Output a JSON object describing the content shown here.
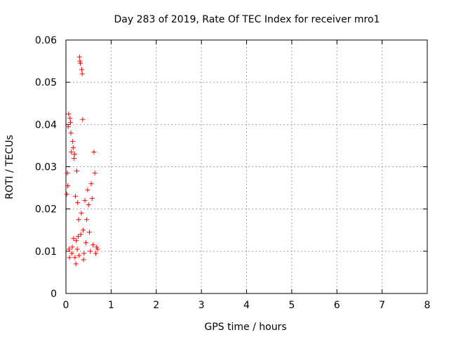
{
  "chart_data": {
    "type": "scatter",
    "title": "Day 283 of 2019, Rate Of TEC Index for receiver mro1",
    "xlabel": "GPS time / hours",
    "ylabel": "ROTI / TECUs",
    "xlim": [
      0,
      8
    ],
    "ylim": [
      0,
      0.06
    ],
    "xticks": [
      "0",
      "1",
      "2",
      "3",
      "4",
      "5",
      "6",
      "7",
      "8"
    ],
    "yticks": [
      "0",
      "0.01",
      "0.02",
      "0.03",
      "0.04",
      "0.05",
      "0.06"
    ],
    "grid": true,
    "marker": "+",
    "marker_color": "#ff0000",
    "series": [
      {
        "name": "ROTI",
        "points": [
          [
            0.02,
            0.0235
          ],
          [
            0.03,
            0.0285
          ],
          [
            0.04,
            0.0255
          ],
          [
            0.05,
            0.0395
          ],
          [
            0.06,
            0.0425
          ],
          [
            0.07,
            0.0105
          ],
          [
            0.08,
            0.0085
          ],
          [
            0.09,
            0.0415
          ],
          [
            0.1,
            0.0405
          ],
          [
            0.11,
            0.038
          ],
          [
            0.12,
            0.0335
          ],
          [
            0.13,
            0.0095
          ],
          [
            0.14,
            0.011
          ],
          [
            0.15,
            0.036
          ],
          [
            0.16,
            0.0345
          ],
          [
            0.17,
            0.013
          ],
          [
            0.18,
            0.032
          ],
          [
            0.19,
            0.033
          ],
          [
            0.2,
            0.0085
          ],
          [
            0.21,
            0.023
          ],
          [
            0.22,
            0.007
          ],
          [
            0.23,
            0.0125
          ],
          [
            0.24,
            0.029
          ],
          [
            0.25,
            0.0105
          ],
          [
            0.26,
            0.0215
          ],
          [
            0.27,
            0.0135
          ],
          [
            0.28,
            0.0175
          ],
          [
            0.29,
            0.009
          ],
          [
            0.3,
            0.056
          ],
          [
            0.31,
            0.055
          ],
          [
            0.32,
            0.0545
          ],
          [
            0.33,
            0.014
          ],
          [
            0.34,
            0.019
          ],
          [
            0.35,
            0.053
          ],
          [
            0.36,
            0.052
          ],
          [
            0.37,
            0.0412
          ],
          [
            0.38,
            0.015
          ],
          [
            0.39,
            0.008
          ],
          [
            0.4,
            0.0095
          ],
          [
            0.42,
            0.022
          ],
          [
            0.44,
            0.012
          ],
          [
            0.46,
            0.0175
          ],
          [
            0.48,
            0.0245
          ],
          [
            0.5,
            0.021
          ],
          [
            0.52,
            0.0145
          ],
          [
            0.54,
            0.01
          ],
          [
            0.56,
            0.026
          ],
          [
            0.58,
            0.0225
          ],
          [
            0.6,
            0.0115
          ],
          [
            0.62,
            0.0335
          ],
          [
            0.64,
            0.0285
          ],
          [
            0.66,
            0.0095
          ],
          [
            0.68,
            0.011
          ],
          [
            0.7,
            0.0105
          ]
        ]
      }
    ]
  }
}
